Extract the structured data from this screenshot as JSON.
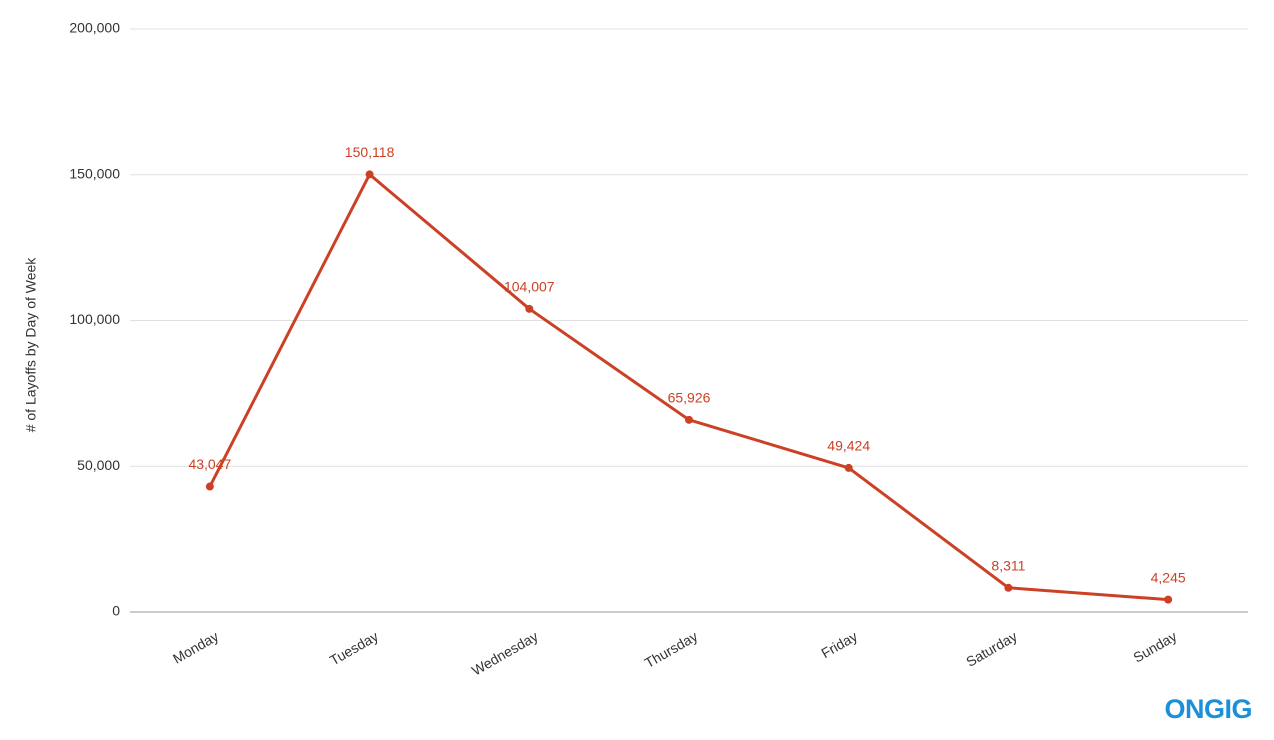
{
  "chart_data": {
    "type": "line",
    "y_label": "# of Layoffs by Day of Week",
    "categories": [
      "Monday",
      "Tuesday",
      "Wednesday",
      "Thursday",
      "Friday",
      "Saturday",
      "Sunday"
    ],
    "values": [
      43047,
      150118,
      104007,
      65926,
      49424,
      8311,
      4245
    ],
    "value_labels": [
      "43,047",
      "150,118",
      "104,007",
      "65,926",
      "49,424",
      "8,311",
      "4,245"
    ],
    "color": "#cc4125",
    "ylim": [
      0,
      200000
    ],
    "yticks": [
      0,
      {
        "value": 50000,
        "label": "50,000"
      },
      {
        "value": 100000,
        "label": "100,000"
      },
      {
        "value": 150000,
        "label": "150,000"
      },
      {
        "value": 200000,
        "label": "200,000"
      }
    ],
    "grid": true,
    "watermark": "ONGIG"
  }
}
